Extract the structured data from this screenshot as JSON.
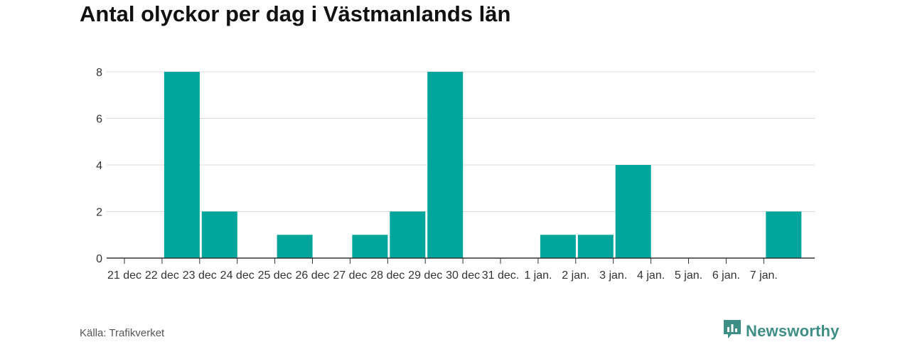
{
  "title": "Antal olyckor per dag i Västmanlands län",
  "source": "Källa: Trafikverket",
  "brand": {
    "name": "Newsworthy",
    "icon": "newsworthy-logo-icon"
  },
  "colors": {
    "bar": "#00a69c",
    "grid": "#d9d9d9",
    "axis": "#333333",
    "brand": "#3f8e86"
  },
  "chart_data": {
    "type": "bar",
    "title": "Antal olyckor per dag i Västmanlands län",
    "xlabel": "",
    "ylabel": "",
    "categories": [
      "21 dec",
      "22 dec",
      "23 dec",
      "24 dec",
      "25 dec",
      "26 dec",
      "27 dec",
      "28 dec",
      "29 dec",
      "30 dec",
      "31 dec.",
      "1 jan.",
      "2 jan.",
      "3 jan.",
      "4 jan.",
      "5 jan.",
      "6 jan.",
      "7 jan."
    ],
    "values": [
      0,
      8,
      2,
      0,
      1,
      0,
      1,
      2,
      8,
      0,
      0,
      1,
      1,
      4,
      0,
      0,
      0,
      2
    ],
    "yticks": [
      0,
      2,
      4,
      6,
      8
    ],
    "ylim": [
      0,
      8
    ],
    "grid": true,
    "legend": "none"
  }
}
